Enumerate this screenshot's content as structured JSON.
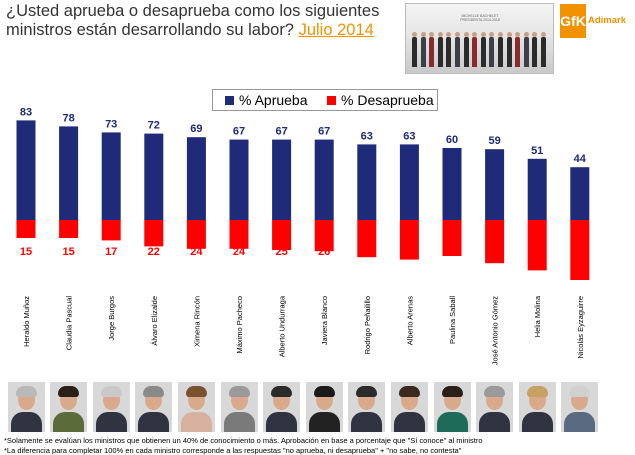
{
  "title": {
    "question": "¿Usted aprueba o desaprueba como los siguientes ministros están desarrollando su labor?",
    "date": "Julio 2014"
  },
  "header_photo": {
    "banner": "MICHELLE BACHELET",
    "subtitle": "PRESIDENTA 2014-2018"
  },
  "logo": {
    "mark": "GfK",
    "text": "Adimark"
  },
  "colors": {
    "approve": "#1f2a78",
    "disapprove": "#ff0000",
    "accent": "#f39200"
  },
  "chart_data": {
    "type": "bar",
    "title": "",
    "categories": [
      "Heraldo Muñoz",
      "Claudia Pascual",
      "Jorge Burgos",
      "Álvaro Elizalde",
      "Ximena Rincón",
      "Máximo Pacheco",
      "Alberto Undurraga",
      "Javiera Blanco",
      "Rodrigo Peñailillo",
      "Alberto Arenas",
      "Paulina Saball",
      "José Antonio Gómez",
      "Helia Molina",
      "Nicolás Eyzaguirre"
    ],
    "series": [
      {
        "name": "% Aprueba",
        "values": [
          83,
          78,
          73,
          72,
          69,
          67,
          67,
          67,
          63,
          63,
          60,
          59,
          51,
          44
        ]
      },
      {
        "name": "% Desaprueba",
        "values": [
          15,
          15,
          17,
          22,
          24,
          24,
          25,
          26,
          31,
          33,
          30,
          36,
          42,
          50
        ]
      }
    ],
    "legend": [
      "% Aprueba",
      "% Desaprueba"
    ],
    "legend_position": "top-center",
    "xlabel": "",
    "ylabel": "",
    "ylim": [
      -50,
      83
    ]
  },
  "footnotes": [
    "*Solamente se evalúan los ministros que obtienen un 40% de conocimiento o más. Aprobación en base a porcentaje que \"Sí conoce\" al ministro",
    "*La diferencia para completar 100% en cada ministro corresponde a las respuestas \"no aprueba, ni desaprueba\" + \"no sabe, no contesta\""
  ]
}
